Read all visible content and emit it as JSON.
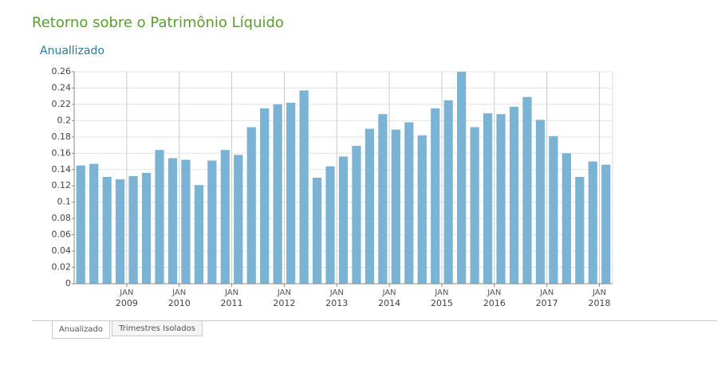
{
  "chart_data": {
    "type": "bar",
    "title": "Retorno sobre o Patrimônio Líquido",
    "subtitle": "Anuallizado",
    "categories": [
      null,
      null,
      null,
      null,
      null,
      null,
      null,
      null,
      null,
      null,
      null,
      null,
      null,
      null,
      null,
      null,
      null,
      null,
      null,
      null,
      null,
      null,
      null,
      null,
      null,
      null,
      null,
      null,
      null,
      null,
      null,
      null,
      null,
      null,
      null,
      null,
      null,
      null,
      null,
      null,
      null
    ],
    "values": [
      0.145,
      0.147,
      0.131,
      0.128,
      0.132,
      0.136,
      0.164,
      0.154,
      0.152,
      0.121,
      0.151,
      0.164,
      0.158,
      0.192,
      0.215,
      0.22,
      0.222,
      0.237,
      0.13,
      0.144,
      0.156,
      0.169,
      0.19,
      0.208,
      0.189,
      0.198,
      0.182,
      0.215,
      0.225,
      0.26,
      0.192,
      0.209,
      0.208,
      0.217,
      0.229,
      0.201,
      0.181,
      0.16,
      0.131,
      0.15,
      0.146
    ],
    "color": "#7ab3d3",
    "ylim": [
      0,
      0.26
    ],
    "yticks": [
      0,
      0.02,
      0.04,
      0.06,
      0.08,
      0.1,
      0.12,
      0.14,
      0.16,
      0.18,
      0.2,
      0.22,
      0.24,
      0.26
    ],
    "xtick_labels": [
      {
        "month": "JAN",
        "year": "2009"
      },
      {
        "month": "JAN",
        "year": "2010"
      },
      {
        "month": "JAN",
        "year": "2011"
      },
      {
        "month": "JAN",
        "year": "2012"
      },
      {
        "month": "JAN",
        "year": "2013"
      },
      {
        "month": "JAN",
        "year": "2014"
      },
      {
        "month": "JAN",
        "year": "2015"
      },
      {
        "month": "JAN",
        "year": "2016"
      },
      {
        "month": "JAN",
        "year": "2017"
      },
      {
        "month": "JAN",
        "year": "2018"
      }
    ],
    "grid": true
  },
  "tabs": [
    "Anualizado",
    "Trimestres Isolados"
  ]
}
